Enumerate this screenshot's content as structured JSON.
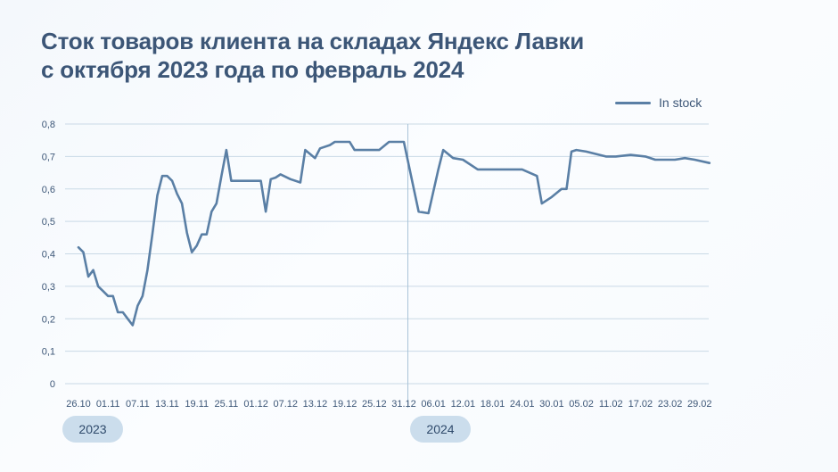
{
  "title_lines": [
    "Сток товаров клиента на складах Яндекс Лавки",
    "с октября 2023 года по февраль 2024"
  ],
  "legend": {
    "label": "In stock",
    "color": "#5a7fa5"
  },
  "year_badges": [
    "2023",
    "2024"
  ],
  "chart_data": {
    "type": "line",
    "title": "Сток товаров клиента на складах Яндекс Лавки с октября 2023 года по февраль 2024",
    "xlabel": "",
    "ylabel": "",
    "ylim": [
      0,
      0.8
    ],
    "y_ticks": [
      "0",
      "0,1",
      "0,2",
      "0,3",
      "0,4",
      "0,5",
      "0,6",
      "0,7",
      "0,8"
    ],
    "x_ticks": [
      "26.10",
      "01.11",
      "07.11",
      "13.11",
      "19.11",
      "25.11",
      "01.12",
      "07.12",
      "13.12",
      "19.12",
      "25.12",
      "31.12",
      "06.01",
      "12.01",
      "18.01",
      "24.01",
      "30.01",
      "05.02",
      "11.02",
      "17.02",
      "23.02",
      "29.02"
    ],
    "x_start_date": "2023-10-26",
    "grid": true,
    "legend_position": "top-right",
    "year_divider_date": "2024-01-01",
    "series": [
      {
        "name": "In stock",
        "color": "#5a7fa5",
        "points": [
          [
            "2023-10-26",
            0.42
          ],
          [
            "2023-10-27",
            0.405
          ],
          [
            "2023-10-28",
            0.33
          ],
          [
            "2023-10-29",
            0.35
          ],
          [
            "2023-10-30",
            0.3
          ],
          [
            "2023-10-31",
            0.285
          ],
          [
            "2023-11-01",
            0.27
          ],
          [
            "2023-11-02",
            0.27
          ],
          [
            "2023-11-03",
            0.22
          ],
          [
            "2023-11-04",
            0.22
          ],
          [
            "2023-11-05",
            0.2
          ],
          [
            "2023-11-06",
            0.18
          ],
          [
            "2023-11-07",
            0.24
          ],
          [
            "2023-11-08",
            0.27
          ],
          [
            "2023-11-09",
            0.35
          ],
          [
            "2023-11-10",
            0.46
          ],
          [
            "2023-11-11",
            0.58
          ],
          [
            "2023-11-12",
            0.64
          ],
          [
            "2023-11-13",
            0.64
          ],
          [
            "2023-11-14",
            0.625
          ],
          [
            "2023-11-15",
            0.585
          ],
          [
            "2023-11-16",
            0.555
          ],
          [
            "2023-11-17",
            0.465
          ],
          [
            "2023-11-18",
            0.405
          ],
          [
            "2023-11-19",
            0.425
          ],
          [
            "2023-11-20",
            0.46
          ],
          [
            "2023-11-21",
            0.46
          ],
          [
            "2023-11-22",
            0.53
          ],
          [
            "2023-11-23",
            0.555
          ],
          [
            "2023-11-24",
            0.64
          ],
          [
            "2023-11-25",
            0.72
          ],
          [
            "2023-11-26",
            0.625
          ],
          [
            "2023-11-27",
            0.625
          ],
          [
            "2023-11-28",
            0.625
          ],
          [
            "2023-11-29",
            0.625
          ],
          [
            "2023-11-30",
            0.625
          ],
          [
            "2023-12-01",
            0.625
          ],
          [
            "2023-12-02",
            0.625
          ],
          [
            "2023-12-03",
            0.53
          ],
          [
            "2023-12-04",
            0.63
          ],
          [
            "2023-12-05",
            0.635
          ],
          [
            "2023-12-06",
            0.645
          ],
          [
            "2023-12-08",
            0.63
          ],
          [
            "2023-12-10",
            0.62
          ],
          [
            "2023-12-11",
            0.72
          ],
          [
            "2023-12-13",
            0.695
          ],
          [
            "2023-12-14",
            0.725
          ],
          [
            "2023-12-16",
            0.735
          ],
          [
            "2023-12-17",
            0.745
          ],
          [
            "2023-12-20",
            0.745
          ],
          [
            "2023-12-21",
            0.72
          ],
          [
            "2023-12-22",
            0.72
          ],
          [
            "2023-12-26",
            0.72
          ],
          [
            "2023-12-28",
            0.745
          ],
          [
            "2023-12-31",
            0.745
          ],
          [
            "2024-01-03",
            0.53
          ],
          [
            "2024-01-05",
            0.525
          ],
          [
            "2024-01-07",
            0.66
          ],
          [
            "2024-01-08",
            0.72
          ],
          [
            "2024-01-10",
            0.695
          ],
          [
            "2024-01-12",
            0.69
          ],
          [
            "2024-01-15",
            0.66
          ],
          [
            "2024-01-24",
            0.66
          ],
          [
            "2024-01-27",
            0.64
          ],
          [
            "2024-01-28",
            0.555
          ],
          [
            "2024-01-30",
            0.575
          ],
          [
            "2024-02-01",
            0.6
          ],
          [
            "2024-02-02",
            0.6
          ],
          [
            "2024-02-03",
            0.715
          ],
          [
            "2024-02-04",
            0.72
          ],
          [
            "2024-02-06",
            0.715
          ],
          [
            "2024-02-10",
            0.7
          ],
          [
            "2024-02-12",
            0.7
          ],
          [
            "2024-02-15",
            0.705
          ],
          [
            "2024-02-18",
            0.7
          ],
          [
            "2024-02-20",
            0.69
          ],
          [
            "2024-02-24",
            0.69
          ],
          [
            "2024-02-26",
            0.695
          ],
          [
            "2024-02-28",
            0.69
          ],
          [
            "2024-03-02",
            0.68
          ]
        ]
      }
    ]
  }
}
